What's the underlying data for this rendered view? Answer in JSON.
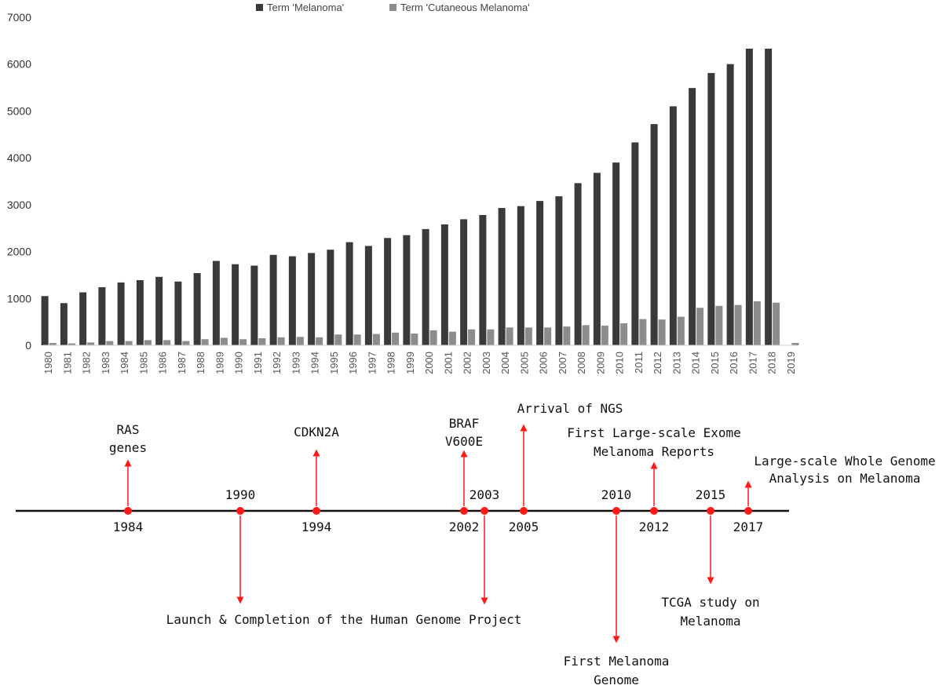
{
  "chart_data": {
    "type": "bar",
    "categories": [
      "1980",
      "1981",
      "1982",
      "1983",
      "1984",
      "1985",
      "1986",
      "1987",
      "1988",
      "1989",
      "1990",
      "1991",
      "1992",
      "1993",
      "1994",
      "1995",
      "1996",
      "1997",
      "1998",
      "1999",
      "2000",
      "2001",
      "2002",
      "2003",
      "2004",
      "2005",
      "2006",
      "2007",
      "2008",
      "2009",
      "2010",
      "2011",
      "2012",
      "2013",
      "2014",
      "2015",
      "2016",
      "2017",
      "2018",
      "2019"
    ],
    "series": [
      {
        "name": "Term 'Melanoma'",
        "color": "#3a3a3a",
        "values": [
          1050,
          900,
          1130,
          1240,
          1340,
          1390,
          1460,
          1360,
          1540,
          1800,
          1730,
          1700,
          1930,
          1900,
          1970,
          2040,
          2200,
          2120,
          2290,
          2350,
          2480,
          2580,
          2690,
          2780,
          2930,
          2970,
          3080,
          3180,
          3460,
          3680,
          3900,
          4330,
          4720,
          5100,
          5490,
          5810,
          6000,
          6330,
          6330,
          0
        ]
      },
      {
        "name": "Term 'Cutaneous Melanoma'",
        "color": "#8c8c8c",
        "values": [
          50,
          40,
          60,
          90,
          90,
          110,
          110,
          90,
          130,
          160,
          130,
          150,
          170,
          180,
          170,
          230,
          230,
          240,
          270,
          250,
          320,
          290,
          340,
          340,
          380,
          380,
          380,
          400,
          430,
          420,
          470,
          560,
          550,
          610,
          800,
          840,
          860,
          940,
          910,
          50
        ]
      }
    ],
    "yticks": [
      "0",
      "1000",
      "2000",
      "3000",
      "4000",
      "5000",
      "6000",
      "7000"
    ],
    "ylim": [
      0,
      7000
    ],
    "grid": false,
    "legend_position": "top"
  },
  "timeline": {
    "events": [
      {
        "year": "1984",
        "label": [
          "RAS",
          "genes"
        ]
      },
      {
        "year": "1990",
        "label": [
          "Launch & Completion of the Human Genome Project"
        ]
      },
      {
        "year": "1994",
        "label": [
          "CDKN2A"
        ]
      },
      {
        "year": "2002",
        "label": [
          "BRAF",
          "V600E"
        ]
      },
      {
        "year": "2003",
        "label": []
      },
      {
        "year": "2005",
        "label": [
          "Arrival of NGS"
        ]
      },
      {
        "year": "2010",
        "label": [
          "First Melanoma",
          "Genome"
        ]
      },
      {
        "year": "2012",
        "label": [
          "First Large-scale Exome",
          "Melanoma Reports"
        ]
      },
      {
        "year": "2015",
        "label": [
          "TCGA study on",
          "Melanoma"
        ]
      },
      {
        "year": "2017",
        "label": [
          "Large-scale Whole Genome",
          "Analysis on Melanoma"
        ]
      }
    ]
  }
}
